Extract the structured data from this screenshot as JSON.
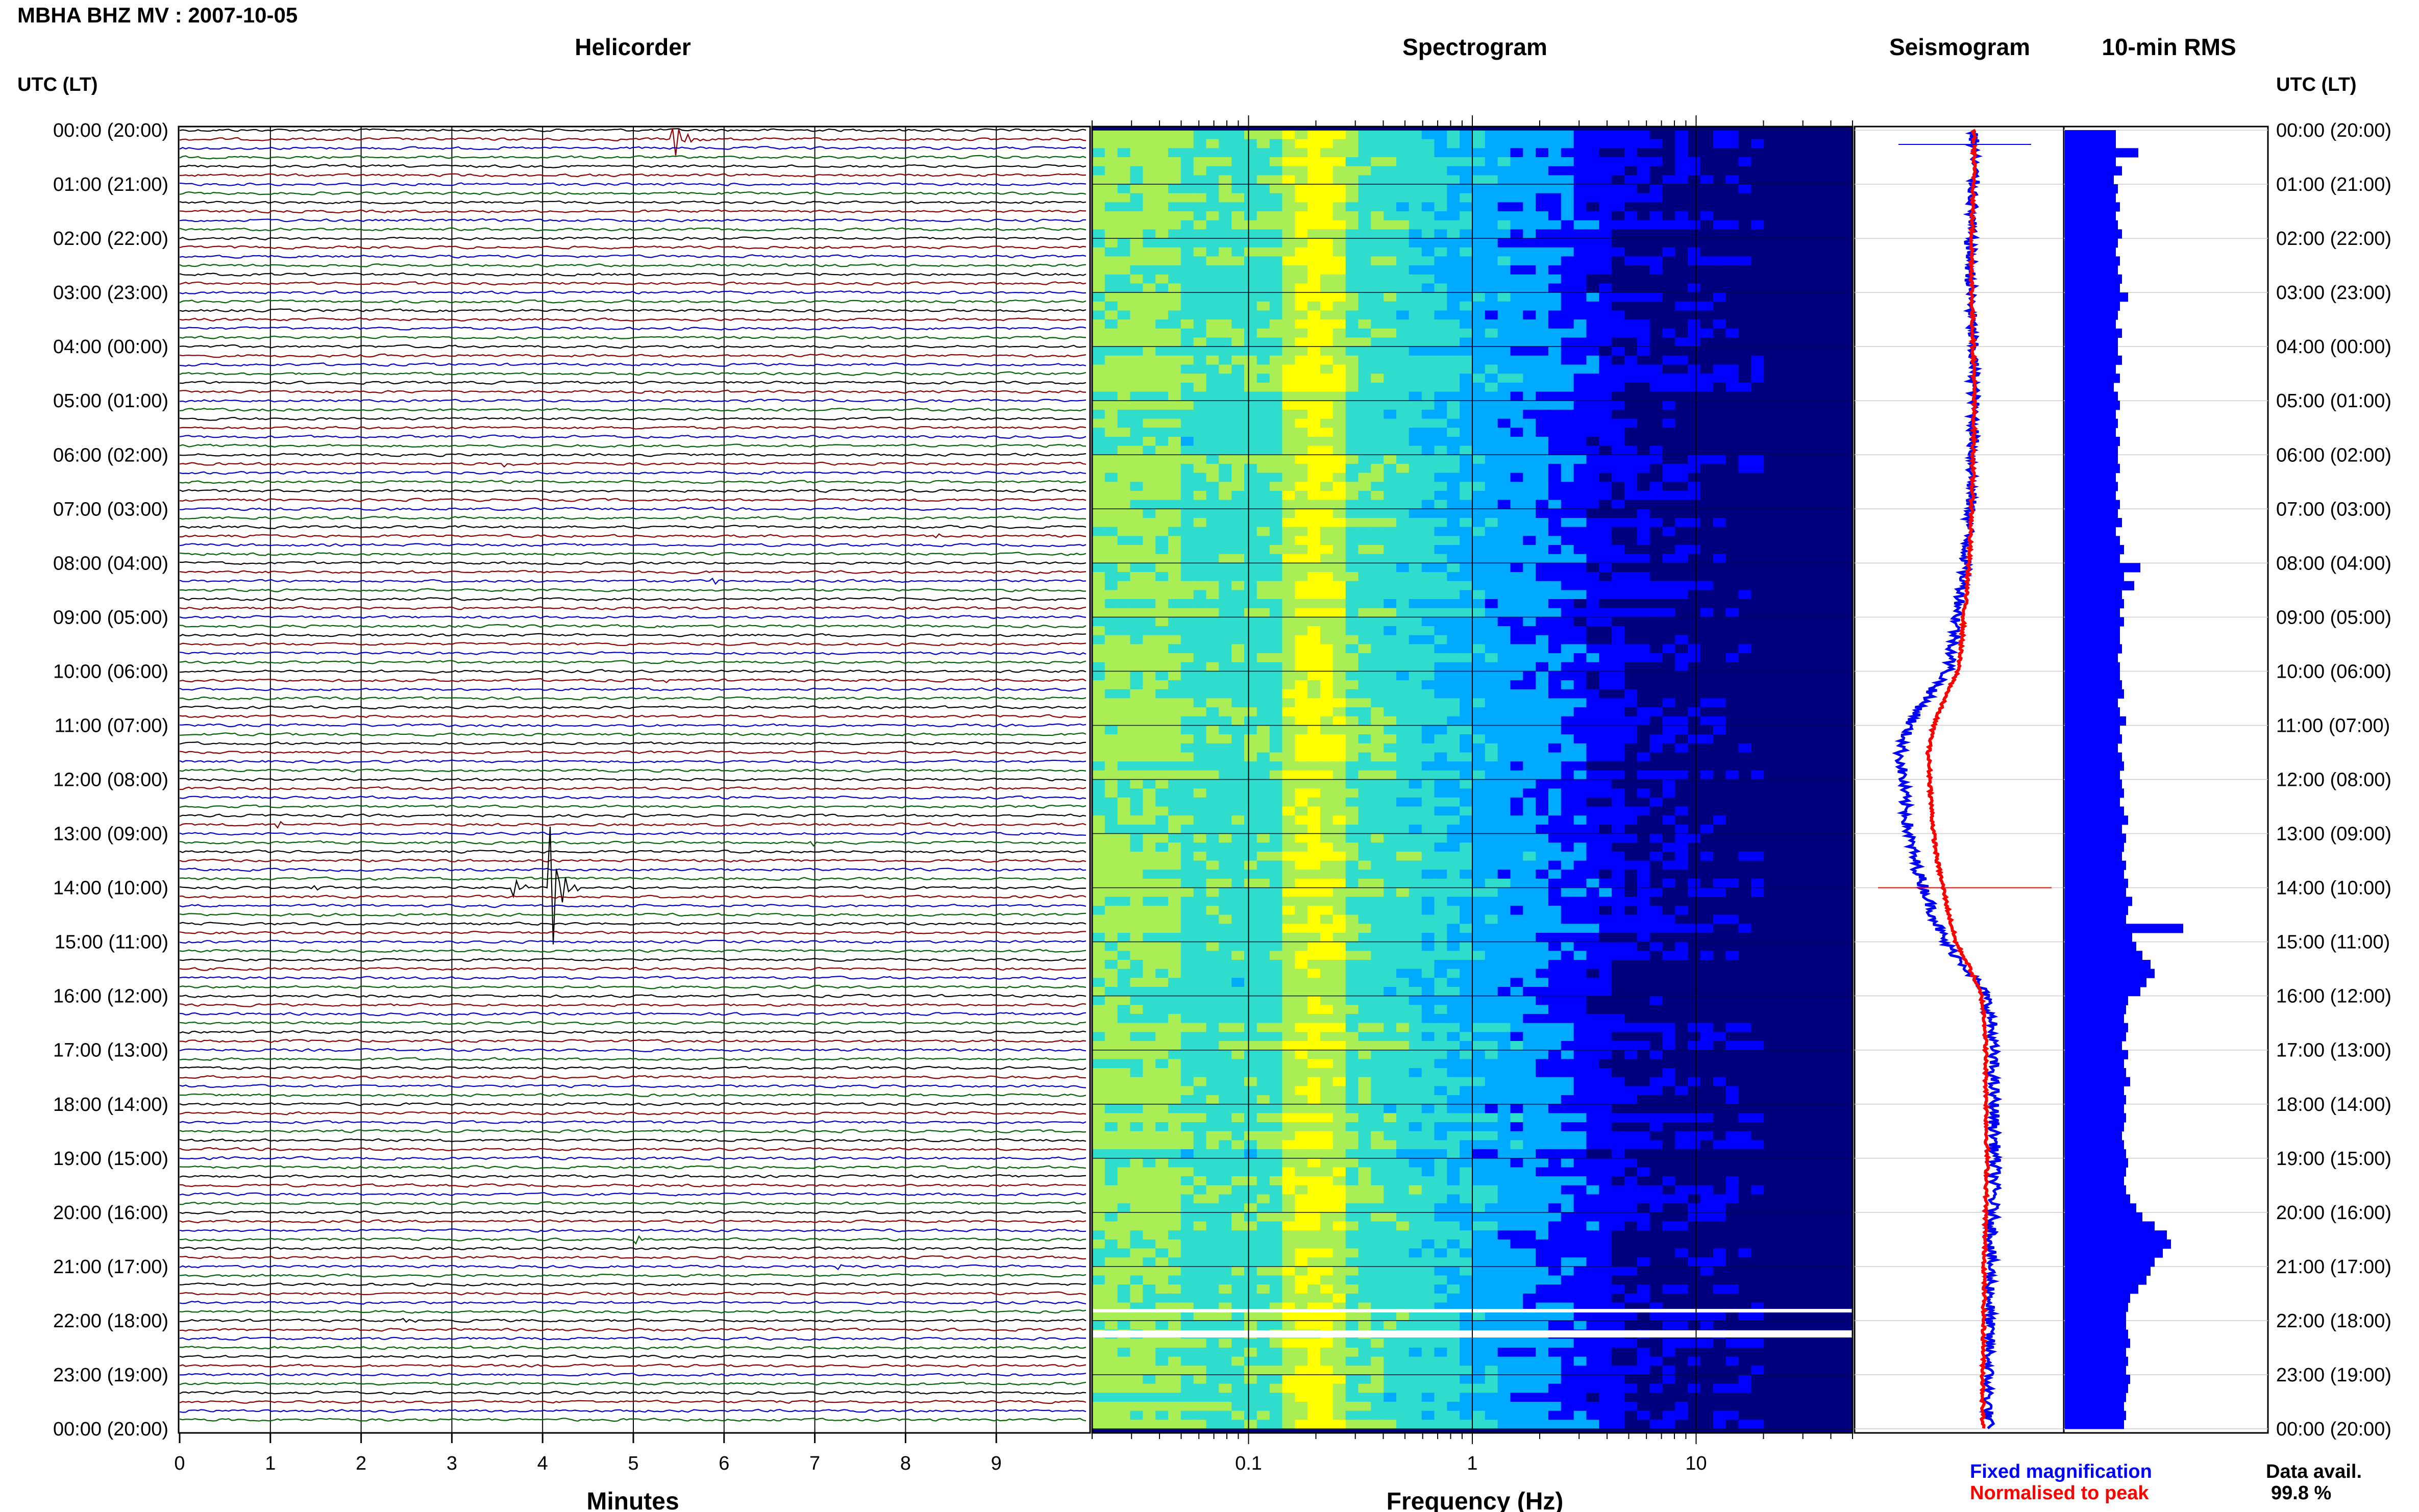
{
  "header": {
    "station_title": "MBHA BHZ MV : 2007-10-05"
  },
  "panels": {
    "helicorder": "Helicorder",
    "spectrogram": "Spectrogram",
    "seismogram": "Seismogram",
    "rms": "10-min RMS"
  },
  "time_axis": {
    "label": "UTC (LT)",
    "ticks": [
      "00:00 (20:00)",
      "01:00 (21:00)",
      "02:00 (22:00)",
      "03:00 (23:00)",
      "04:00 (00:00)",
      "05:00 (01:00)",
      "06:00 (02:00)",
      "07:00 (03:00)",
      "08:00 (04:00)",
      "09:00 (05:00)",
      "10:00 (06:00)",
      "11:00 (07:00)",
      "12:00 (08:00)",
      "13:00 (09:00)",
      "14:00 (10:00)",
      "15:00 (11:00)",
      "16:00 (12:00)",
      "17:00 (13:00)",
      "18:00 (14:00)",
      "19:00 (15:00)",
      "20:00 (16:00)",
      "21:00 (17:00)",
      "22:00 (18:00)",
      "23:00 (19:00)",
      "00:00 (20:00)"
    ]
  },
  "x_axes": {
    "minutes_label": "Minutes",
    "minutes_ticks": [
      "0",
      "1",
      "2",
      "3",
      "4",
      "5",
      "6",
      "7",
      "8",
      "9"
    ],
    "frequency_label": "Frequency (Hz)",
    "frequency_ticks": [
      "0.1",
      "1",
      "10"
    ]
  },
  "legend": {
    "fixed": "Fixed magnification",
    "normalised": "Normalised to peak",
    "fixed_color": "#0000ff",
    "normalised_color": "#ff0000"
  },
  "data_availability": {
    "label": "Data avail.",
    "value": "99.8 %"
  },
  "chart_data": {
    "type": "heatmap",
    "helicorder_trace_colors": [
      "#000000",
      "#8b0000",
      "#0000cc",
      "#006400"
    ],
    "spectrogram_colormap": [
      "#00007f",
      "#0000ff",
      "#00aaff",
      "#30ddcc",
      "#aaee55",
      "#ffff00"
    ],
    "frequency_axis_scale": "log",
    "frequency_range_hz": [
      0.02,
      50
    ],
    "time_range_hours": [
      0,
      24
    ],
    "rms_10min_relative": [
      0.25,
      0.25,
      0.36,
      0.25,
      0.28,
      0.24,
      0.26,
      0.25,
      0.27,
      0.25,
      0.26,
      0.28,
      0.26,
      0.25,
      0.27,
      0.26,
      0.28,
      0.27,
      0.31,
      0.27,
      0.26,
      0.25,
      0.28,
      0.26,
      0.26,
      0.28,
      0.25,
      0.27,
      0.24,
      0.26,
      0.27,
      0.25,
      0.26,
      0.25,
      0.27,
      0.26,
      0.26,
      0.27,
      0.25,
      0.26,
      0.25,
      0.27,
      0.26,
      0.28,
      0.25,
      0.27,
      0.29,
      0.27,
      0.37,
      0.29,
      0.34,
      0.28,
      0.29,
      0.27,
      0.29,
      0.27,
      0.27,
      0.28,
      0.26,
      0.27,
      0.27,
      0.28,
      0.29,
      0.26,
      0.27,
      0.3,
      0.27,
      0.28,
      0.26,
      0.28,
      0.29,
      0.27,
      0.28,
      0.29,
      0.27,
      0.29,
      0.31,
      0.28,
      0.3,
      0.29,
      0.28,
      0.3,
      0.29,
      0.31,
      0.3,
      0.33,
      0.31,
      0.3,
      0.58,
      0.33,
      0.35,
      0.38,
      0.42,
      0.44,
      0.4,
      0.37,
      0.31,
      0.3,
      0.29,
      0.31,
      0.3,
      0.28,
      0.31,
      0.29,
      0.3,
      0.32,
      0.29,
      0.3,
      0.29,
      0.3,
      0.29,
      0.28,
      0.29,
      0.3,
      0.31,
      0.3,
      0.29,
      0.3,
      0.32,
      0.35,
      0.38,
      0.44,
      0.5,
      0.52,
      0.48,
      0.44,
      0.42,
      0.4,
      0.36,
      0.32,
      0.31,
      0.3,
      0.3,
      0.31,
      0.32,
      0.3,
      0.31,
      0.3,
      0.32,
      0.31,
      0.3,
      0.29,
      0.3,
      0.29
    ],
    "seismogram_offset": [
      0.0,
      0.0,
      0.0,
      -0.02,
      -0.03,
      -0.03,
      -0.03,
      -0.02,
      -0.01,
      0.0,
      0.0,
      0.0,
      -0.01,
      -0.02,
      -0.03,
      -0.05,
      -0.07,
      -0.1,
      -0.14,
      -0.17,
      -0.22,
      -0.4,
      -0.55,
      -0.62,
      -0.6,
      -0.58,
      -0.55,
      -0.5,
      -0.42,
      -0.34,
      -0.25,
      -0.05,
      0.1,
      0.15,
      0.16,
      0.16,
      0.17,
      0.17,
      0.18,
      0.17,
      0.16,
      0.15,
      0.14,
      0.14,
      0.13,
      0.13,
      0.12,
      0.12,
      0.12
    ]
  }
}
